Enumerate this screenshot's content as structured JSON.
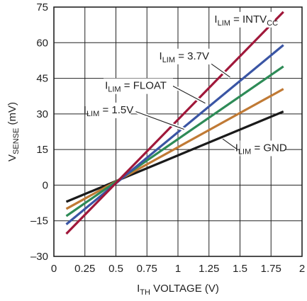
{
  "chart_data": {
    "type": "line",
    "xlabel": {
      "main": "I",
      "sub": "TH",
      "rest": " VOLTAGE (V)"
    },
    "ylabel": {
      "main": "V",
      "sub": "SENSE",
      "rest": " (mV)"
    },
    "xlim": [
      0,
      2
    ],
    "ylim": [
      -30,
      75
    ],
    "x_ticks": [
      0,
      0.25,
      0.5,
      0.75,
      1,
      1.25,
      1.5,
      1.75,
      2
    ],
    "x_tick_labels": [
      "0",
      "0.25",
      "0.5",
      "0.75",
      "1",
      "1.25",
      "1.5",
      "1.75",
      "2"
    ],
    "y_ticks": [
      -30,
      -15,
      0,
      15,
      30,
      45,
      60,
      75
    ],
    "y_tick_labels": [
      "–30",
      "–15",
      "0",
      "15",
      "30",
      "45",
      "60",
      "75"
    ],
    "grid": true,
    "series": [
      {
        "key": "intvcc",
        "label_main": "I",
        "label_sub": "LIM",
        "label_rest": " = INTV",
        "label_sub2": "CC",
        "color": "#a0183a",
        "x": [
          0.1,
          1.85
        ],
        "y": [
          -20.5,
          73
        ]
      },
      {
        "key": "v37",
        "label_main": "I",
        "label_sub": "LIM",
        "label_rest": " = 3.7V",
        "label_sub2": "",
        "color": "#3a55a4",
        "x": [
          0.1,
          1.85
        ],
        "y": [
          -16.5,
          59
        ]
      },
      {
        "key": "float",
        "label_main": "I",
        "label_sub": "LIM",
        "label_rest": " = FLOAT",
        "label_sub2": "",
        "color": "#2e8b57",
        "x": [
          0.1,
          1.85
        ],
        "y": [
          -13,
          50
        ]
      },
      {
        "key": "v15",
        "label_main": "I",
        "label_sub": "LIM",
        "label_rest": " = 1.5V",
        "label_sub2": "",
        "color": "#c07a35",
        "x": [
          0.1,
          1.85
        ],
        "y": [
          -10,
          40.5
        ]
      },
      {
        "key": "gnd",
        "label_main": "I",
        "label_sub": "LIM",
        "label_rest": " = GND",
        "label_sub2": "",
        "color": "#1a1a1a",
        "x": [
          0.1,
          1.85
        ],
        "y": [
          -7,
          31
        ]
      }
    ]
  }
}
